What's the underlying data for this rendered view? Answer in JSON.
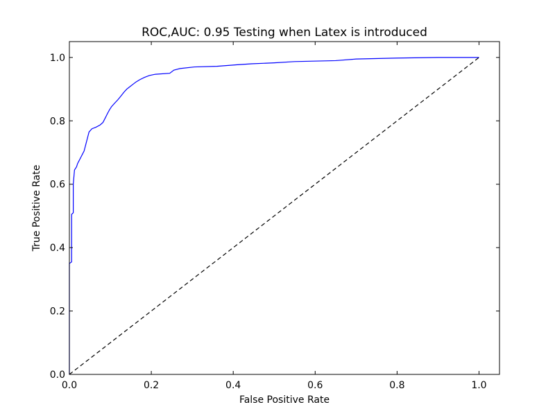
{
  "chart_data": {
    "type": "line",
    "title": "ROC,AUC: 0.95 Testing when Latex is introduced",
    "xlabel": "False Positive Rate",
    "ylabel": "True Positive Rate",
    "xlim": [
      0.0,
      1.05
    ],
    "ylim": [
      0.0,
      1.05
    ],
    "xticks": [
      0.0,
      0.2,
      0.4,
      0.6,
      0.8,
      1.0
    ],
    "yticks": [
      0.0,
      0.2,
      0.4,
      0.6,
      0.8,
      1.0
    ],
    "xtick_labels": [
      "0.0",
      "0.2",
      "0.4",
      "0.6",
      "0.8",
      "1.0"
    ],
    "ytick_labels": [
      "0.0",
      "0.2",
      "0.4",
      "0.6",
      "0.8",
      "1.0"
    ],
    "grid": false,
    "series": [
      {
        "style": "solid",
        "color": "#0000ff",
        "points": [
          [
            0.0,
            0.0
          ],
          [
            0.0,
            0.06
          ],
          [
            0.0,
            0.35
          ],
          [
            0.0055,
            0.355
          ],
          [
            0.0055,
            0.505
          ],
          [
            0.0095,
            0.51
          ],
          [
            0.0095,
            0.6
          ],
          [
            0.0125,
            0.645
          ],
          [
            0.0175,
            0.655
          ],
          [
            0.02,
            0.665
          ],
          [
            0.024,
            0.675
          ],
          [
            0.028,
            0.685
          ],
          [
            0.032,
            0.695
          ],
          [
            0.036,
            0.705
          ],
          [
            0.04,
            0.725
          ],
          [
            0.044,
            0.745
          ],
          [
            0.048,
            0.765
          ],
          [
            0.055,
            0.775
          ],
          [
            0.065,
            0.78
          ],
          [
            0.075,
            0.787
          ],
          [
            0.082,
            0.795
          ],
          [
            0.088,
            0.81
          ],
          [
            0.093,
            0.823
          ],
          [
            0.098,
            0.835
          ],
          [
            0.103,
            0.845
          ],
          [
            0.11,
            0.855
          ],
          [
            0.118,
            0.866
          ],
          [
            0.125,
            0.877
          ],
          [
            0.133,
            0.89
          ],
          [
            0.14,
            0.9
          ],
          [
            0.148,
            0.908
          ],
          [
            0.155,
            0.915
          ],
          [
            0.163,
            0.923
          ],
          [
            0.172,
            0.93
          ],
          [
            0.183,
            0.937
          ],
          [
            0.195,
            0.943
          ],
          [
            0.21,
            0.947
          ],
          [
            0.245,
            0.95
          ],
          [
            0.255,
            0.96
          ],
          [
            0.27,
            0.965
          ],
          [
            0.305,
            0.97
          ],
          [
            0.36,
            0.972
          ],
          [
            0.41,
            0.977
          ],
          [
            0.445,
            0.98
          ],
          [
            0.5,
            0.983
          ],
          [
            0.55,
            0.987
          ],
          [
            0.65,
            0.99
          ],
          [
            0.7,
            0.995
          ],
          [
            0.8,
            0.998
          ],
          [
            0.9,
            1.0
          ],
          [
            1.0,
            1.0
          ]
        ]
      },
      {
        "style": "dashed",
        "color": "#000000",
        "points": [
          [
            0.0,
            0.0
          ],
          [
            1.0,
            1.0
          ]
        ]
      }
    ]
  }
}
